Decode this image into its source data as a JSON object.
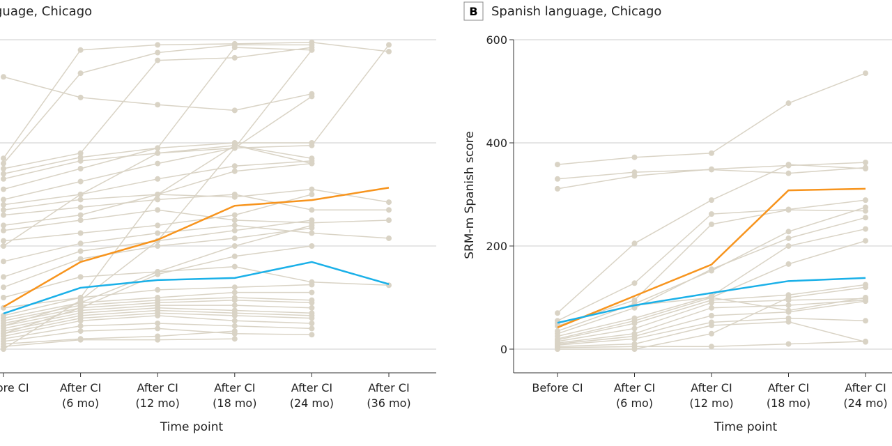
{
  "chart_data": [
    {
      "type": "line",
      "panel_letter": "",
      "title": "guage, Chicago",
      "xlabel": "Time point",
      "ylabel": "",
      "ylim": [
        0,
        600
      ],
      "yticks": [
        0,
        200,
        400,
        600
      ],
      "grid": true,
      "categories": [
        [
          "Before CI",
          ""
        ],
        [
          "After CI",
          "(6 mo)"
        ],
        [
          "After CI",
          "(12 mo)"
        ],
        [
          "After CI",
          "(18 mo)"
        ],
        [
          "After CI",
          "(24 mo)"
        ],
        [
          "After CI",
          "(36 mo)"
        ]
      ],
      "colors": {
        "individual": "#d9d3c5",
        "orange": "#f7941d",
        "blue": "#1ab0e8"
      },
      "highlight": [
        {
          "color": "orange",
          "values": [
            82,
            169,
            212,
            278,
            289,
            313
          ]
        },
        {
          "color": "blue",
          "values": [
            69,
            119,
            134,
            138,
            169,
            126
          ]
        }
      ],
      "individual": [
        [
          528,
          488,
          474,
          463,
          495,
          null
        ],
        [
          370,
          580,
          590,
          592,
          595,
          577
        ],
        [
          360,
          535,
          575,
          590,
          590,
          null
        ],
        [
          350,
          380,
          560,
          565,
          585,
          null
        ],
        [
          340,
          372,
          390,
          585,
          580,
          null
        ],
        [
          330,
          365,
          380,
          395,
          370,
          null
        ],
        [
          310,
          350,
          390,
          400,
          400,
          null
        ],
        [
          290,
          325,
          360,
          390,
          490,
          null
        ],
        [
          280,
          300,
          330,
          355,
          365,
          null
        ],
        [
          270,
          290,
          300,
          295,
          310,
          285
        ],
        [
          260,
          275,
          290,
          300,
          270,
          270
        ],
        [
          240,
          260,
          300,
          345,
          360,
          null
        ],
        [
          230,
          250,
          270,
          250,
          245,
          250
        ],
        [
          210,
          225,
          240,
          260,
          300,
          null
        ],
        [
          200,
          300,
          380,
          390,
          395,
          590
        ],
        [
          170,
          205,
          225,
          240,
          225,
          215
        ],
        [
          140,
          190,
          210,
          230,
          250,
          null
        ],
        [
          120,
          175,
          200,
          215,
          235,
          null
        ],
        [
          100,
          140,
          150,
          160,
          130,
          124
        ],
        [
          80,
          100,
          115,
          120,
          125,
          null
        ],
        [
          60,
          90,
          100,
          110,
          110,
          null
        ],
        [
          55,
          85,
          95,
          100,
          95,
          null
        ],
        [
          50,
          80,
          90,
          95,
          90,
          null
        ],
        [
          45,
          75,
          85,
          85,
          80,
          null
        ],
        [
          40,
          70,
          80,
          75,
          70,
          null
        ],
        [
          35,
          65,
          75,
          70,
          65,
          null
        ],
        [
          30,
          60,
          70,
          65,
          60,
          null
        ],
        [
          25,
          55,
          65,
          55,
          50,
          null
        ],
        [
          20,
          45,
          50,
          45,
          40,
          null
        ],
        [
          15,
          35,
          40,
          30,
          28,
          null
        ],
        [
          10,
          20,
          25,
          35,
          null,
          null
        ],
        [
          5,
          18,
          18,
          20,
          null,
          null
        ],
        [
          0,
          95,
          210,
          390,
          580,
          null
        ],
        [
          65,
          100,
          300,
          395,
          360,
          null
        ],
        [
          45,
          90,
          150,
          200,
          240,
          null
        ],
        [
          30,
          80,
          145,
          180,
          200,
          null
        ]
      ]
    },
    {
      "type": "line",
      "panel_letter": "B",
      "title": "Spanish language, Chicago",
      "xlabel": "Time point",
      "ylabel": "SRM-m Spanish score",
      "ylim": [
        0,
        600
      ],
      "yticks": [
        0,
        200,
        400,
        600
      ],
      "grid": true,
      "categories": [
        [
          "Before CI",
          ""
        ],
        [
          "After CI",
          "(6 mo)"
        ],
        [
          "After CI",
          "(12 mo)"
        ],
        [
          "After CI",
          "(18 mo)"
        ],
        [
          "After CI",
          "(24 mo)"
        ]
      ],
      "colors": {
        "individual": "#d9d3c5",
        "orange": "#f7941d",
        "blue": "#1ab0e8"
      },
      "highlight": [
        {
          "color": "orange",
          "values": [
            42,
            103,
            164,
            308,
            311
          ]
        },
        {
          "color": "blue",
          "values": [
            51,
            85,
            109,
            132,
            138
          ]
        }
      ],
      "individual": [
        [
          358,
          372,
          380,
          477,
          535
        ],
        [
          330,
          343,
          348,
          341,
          352
        ],
        [
          311,
          336,
          349,
          356,
          362
        ],
        [
          70,
          205,
          289,
          358,
          350
        ],
        [
          55,
          128,
          262,
          271,
          289
        ],
        [
          45,
          95,
          242,
          270,
          268
        ],
        [
          35,
          88,
          152,
          228,
          275
        ],
        [
          30,
          80,
          155,
          215,
          255
        ],
        [
          25,
          60,
          103,
          200,
          233
        ],
        [
          20,
          55,
          100,
          165,
          210
        ],
        [
          18,
          50,
          95,
          105,
          125
        ],
        [
          15,
          40,
          90,
          95,
          98
        ],
        [
          12,
          30,
          80,
          85,
          95
        ],
        [
          10,
          25,
          65,
          72,
          93
        ],
        [
          8,
          20,
          52,
          60,
          55
        ],
        [
          5,
          10,
          46,
          53,
          14
        ],
        [
          3,
          5,
          5,
          10,
          15
        ],
        [
          0,
          0,
          30,
          100,
          120
        ],
        [
          50,
          85,
          100,
          75,
          100
        ]
      ]
    }
  ]
}
